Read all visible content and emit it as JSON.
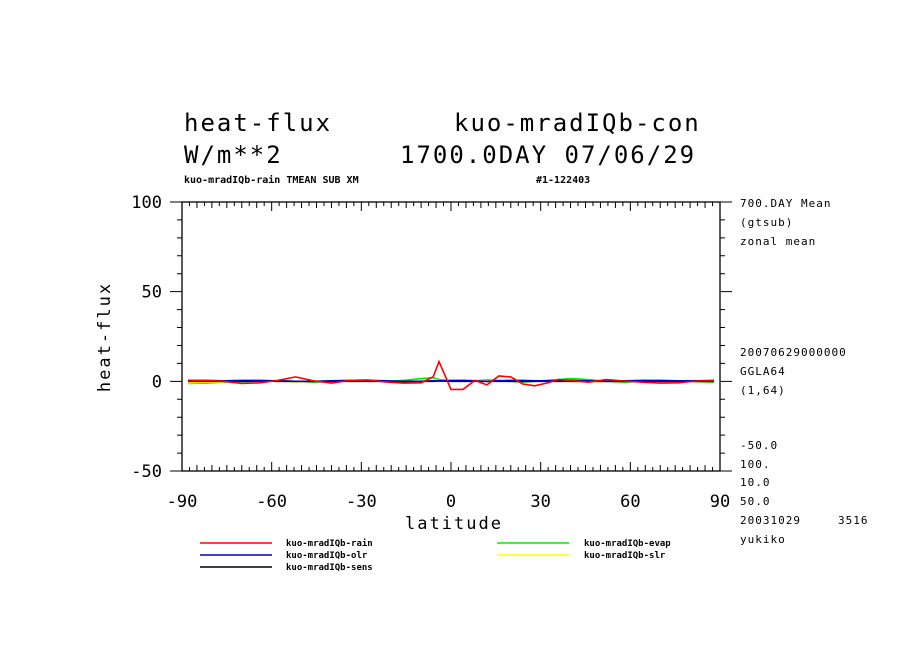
{
  "header": {
    "var_name": "heat-flux",
    "experiment": "kuo-mradIQb-con",
    "units": "W/m**2",
    "time": "1700.0DAY 07/06/29",
    "subtitle": "kuo-mradIQb-rain TMEAN SUB XM",
    "run_id": "#1-122403"
  },
  "side_info": {
    "top": [
      "700.DAY Mean",
      "(gtsub)",
      "zonal mean"
    ],
    "mid": [
      "20070629000000",
      "GGLA64",
      "(1,64)"
    ],
    "bottom": [
      "-50.0",
      "100.",
      "10.0",
      "50.0"
    ],
    "date": "20031029",
    "number": "3516",
    "user": "yukiko"
  },
  "chart_data": {
    "type": "line",
    "xlabel": "latitude",
    "ylabel": "heat-flux",
    "xlim": [
      -90,
      90
    ],
    "ylim": [
      -50,
      100
    ],
    "x_ticks": [
      -90,
      -60,
      -30,
      0,
      30,
      60,
      90
    ],
    "y_ticks": [
      -50,
      0,
      50,
      100
    ],
    "grid": false,
    "legend_position": "bottom",
    "x": [
      -88,
      -82,
      -76,
      -70,
      -64,
      -58,
      -52,
      -46,
      -40,
      -34,
      -28,
      -22,
      -16,
      -10,
      -6,
      -4,
      0,
      4,
      8,
      12,
      16,
      20,
      24,
      28,
      32,
      36,
      40,
      46,
      52,
      58,
      64,
      70,
      76,
      82,
      88
    ],
    "series": [
      {
        "name": "kuo-mradIQb-rain",
        "color": "#ff0000",
        "values": [
          0.2,
          0.4,
          0.0,
          -1.2,
          -0.8,
          0.5,
          2.5,
          0.3,
          -1.0,
          0.5,
          0.8,
          -0.3,
          -1.0,
          -0.8,
          2.5,
          11.0,
          -4.5,
          -4.5,
          0.5,
          -2.0,
          3.0,
          2.5,
          -1.5,
          -2.5,
          -1.0,
          1.0,
          0.5,
          -0.5,
          1.0,
          0.2,
          -0.5,
          -1.0,
          -0.8,
          0.2,
          0.3
        ]
      },
      {
        "name": "kuo-mradIQb-evap",
        "color": "#00ee00",
        "values": [
          -1.2,
          -1.0,
          -0.5,
          -0.2,
          0.0,
          0.3,
          0.0,
          -0.5,
          0.0,
          0.5,
          0.5,
          0.0,
          0.5,
          1.5,
          2.0,
          1.0,
          0.0,
          0.5,
          0.3,
          0.8,
          0.5,
          0.0,
          -0.5,
          0.0,
          0.5,
          1.0,
          1.5,
          1.0,
          0.0,
          -0.5,
          0.0,
          0.3,
          0.0,
          -0.2,
          -0.5
        ]
      },
      {
        "name": "kuo-mradIQb-olr",
        "color": "#0000cc",
        "values": [
          0.5,
          0.5,
          0.3,
          0.5,
          0.5,
          0.3,
          0.0,
          0.0,
          0.3,
          0.5,
          0.5,
          0.3,
          0.0,
          0.0,
          0.3,
          0.3,
          0.5,
          0.5,
          0.3,
          0.0,
          0.3,
          0.5,
          0.5,
          0.3,
          0.3,
          0.5,
          0.5,
          0.3,
          0.0,
          0.3,
          0.5,
          0.5,
          0.3,
          0.3,
          0.5
        ]
      },
      {
        "name": "kuo-mradIQb-slr",
        "color": "#ffff00",
        "values": [
          -0.8,
          -0.5,
          -0.3,
          0.0,
          0.3,
          0.0,
          -0.3,
          0.0,
          0.3,
          0.5,
          0.3,
          0.0,
          -0.3,
          0.0,
          0.5,
          0.3,
          0.0,
          0.0,
          0.3,
          0.3,
          0.0,
          0.0,
          0.3,
          0.5,
          0.3,
          0.0,
          0.0,
          -0.3,
          0.0,
          0.3,
          0.3,
          0.0,
          -0.3,
          0.0,
          0.0
        ]
      },
      {
        "name": "kuo-mradIQb-sens",
        "color": "#000000",
        "values": [
          0.0,
          0.0,
          0.0,
          0.0,
          0.2,
          0.0,
          0.0,
          0.0,
          0.0,
          0.0,
          0.0,
          0.0,
          -0.2,
          0.0,
          0.0,
          0.2,
          0.0,
          0.0,
          0.0,
          0.0,
          0.0,
          0.0,
          0.0,
          0.0,
          0.0,
          0.0,
          0.0,
          0.0,
          0.0,
          0.0,
          0.0,
          0.0,
          0.0,
          0.0,
          0.0
        ]
      }
    ]
  }
}
